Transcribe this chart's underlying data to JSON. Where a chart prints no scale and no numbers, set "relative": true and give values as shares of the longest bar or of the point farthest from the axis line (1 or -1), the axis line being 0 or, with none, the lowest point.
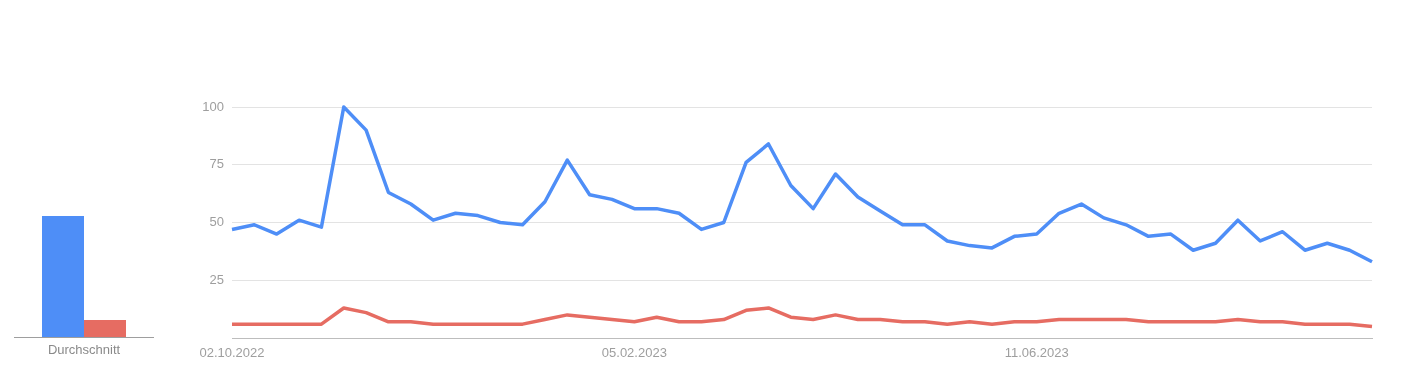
{
  "chart_data": [
    {
      "type": "bar",
      "categories": [
        "Durchschnitt"
      ],
      "relative": true,
      "series": [
        {
          "color": "#4e8ef7",
          "values": [
            1
          ]
        },
        {
          "color": "#e66c62",
          "values": [
            0.14
          ]
        }
      ]
    },
    {
      "type": "line",
      "x": [
        "2022-10-02",
        "2022-10-09",
        "2022-10-16",
        "2022-10-23",
        "2022-10-30",
        "2022-11-06",
        "2022-11-13",
        "2022-11-20",
        "2022-11-27",
        "2022-12-04",
        "2022-12-11",
        "2022-12-18",
        "2022-12-25",
        "2023-01-01",
        "2023-01-08",
        "2023-01-15",
        "2023-01-22",
        "2023-01-29",
        "2023-02-05",
        "2023-02-12",
        "2023-02-19",
        "2023-02-26",
        "2023-03-05",
        "2023-03-12",
        "2023-03-19",
        "2023-03-26",
        "2023-04-02",
        "2023-04-09",
        "2023-04-16",
        "2023-04-23",
        "2023-04-30",
        "2023-05-07",
        "2023-05-14",
        "2023-05-21",
        "2023-05-28",
        "2023-06-04",
        "2023-06-11",
        "2023-06-18",
        "2023-06-25",
        "2023-07-02",
        "2023-07-09",
        "2023-07-16",
        "2023-07-23",
        "2023-07-30",
        "2023-08-06",
        "2023-08-13",
        "2023-08-20",
        "2023-08-27",
        "2023-09-03",
        "2023-09-10",
        "2023-09-17",
        "2023-09-24"
      ],
      "xlim": [
        "2022-10-02",
        "2023-09-24"
      ],
      "xticks": [
        {
          "value": "2022-10-02",
          "label": "02.10.2022"
        },
        {
          "value": "2023-02-05",
          "label": "05.02.2023"
        },
        {
          "value": "2023-06-11",
          "label": "11.06.2023"
        }
      ],
      "ylim": [
        0,
        100
      ],
      "yticks": [
        25,
        50,
        75,
        100
      ],
      "grid": "y",
      "marker": "none",
      "line_style": "solid",
      "series": [
        {
          "color": "#4e8ef7",
          "values": [
            47,
            49,
            45,
            51,
            48,
            100,
            90,
            63,
            58,
            51,
            54,
            53,
            50,
            49,
            59,
            77,
            62,
            60,
            56,
            56,
            54,
            47,
            50,
            76,
            84,
            66,
            56,
            71,
            61,
            55,
            49,
            49,
            42,
            40,
            39,
            44,
            45,
            54,
            58,
            52,
            49,
            44,
            45,
            38,
            41,
            51,
            42,
            46,
            38,
            41,
            38,
            33
          ]
        },
        {
          "color": "#e66c62",
          "values": [
            6,
            6,
            6,
            6,
            6,
            13,
            11,
            7,
            7,
            6,
            6,
            6,
            6,
            6,
            8,
            10,
            9,
            8,
            7,
            9,
            7,
            7,
            8,
            12,
            13,
            9,
            8,
            10,
            8,
            8,
            7,
            7,
            6,
            7,
            6,
            7,
            7,
            8,
            8,
            8,
            8,
            7,
            7,
            7,
            7,
            8,
            7,
            7,
            6,
            6,
            6,
            5
          ]
        }
      ]
    }
  ]
}
